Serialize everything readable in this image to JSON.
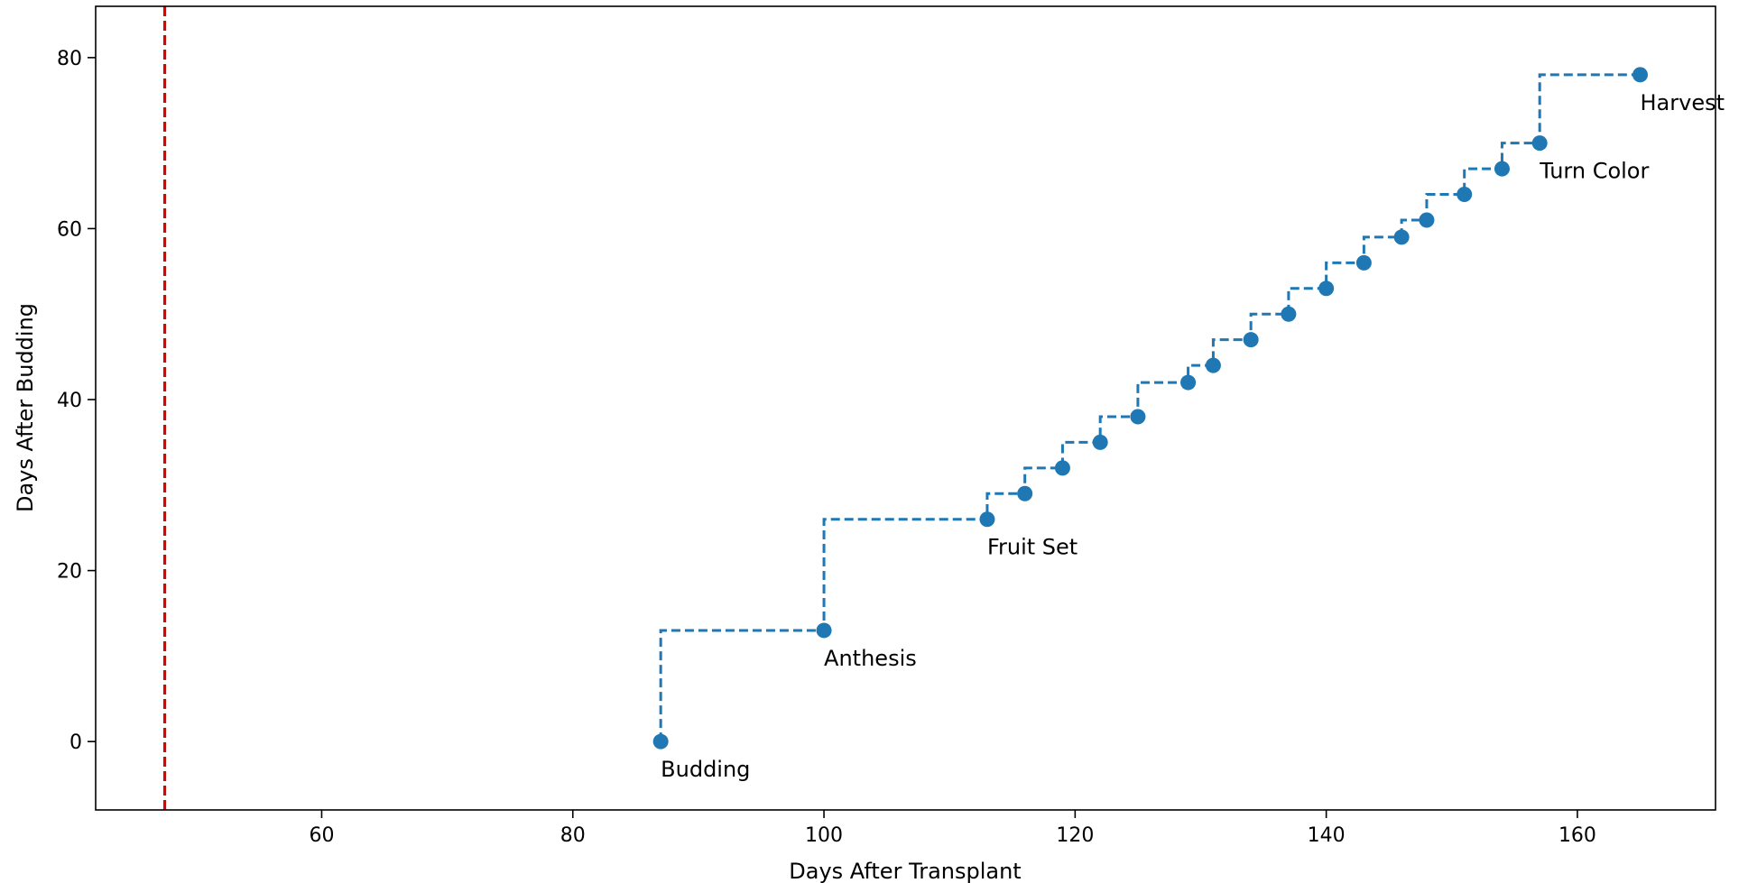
{
  "chart_data": {
    "type": "line",
    "title": "",
    "xlabel": "Days After Transplant",
    "ylabel": "Days After Budding",
    "xlim": [
      42,
      171
    ],
    "ylim": [
      -8,
      86
    ],
    "xticks": [
      60,
      80,
      100,
      120,
      140,
      160
    ],
    "yticks": [
      0,
      20,
      40,
      60,
      80
    ],
    "grid": false,
    "legend": "none",
    "step": "post",
    "line_style": "dashed",
    "series": [
      {
        "x": [
          87,
          100,
          113,
          116,
          119,
          122,
          125,
          129,
          131,
          134,
          137,
          140,
          143,
          146,
          148,
          151,
          154,
          157,
          165
        ],
        "y": [
          0,
          13,
          26,
          29,
          32,
          35,
          38,
          42,
          44,
          47,
          50,
          53,
          56,
          59,
          61,
          64,
          67,
          70,
          78
        ]
      }
    ],
    "annotations": [
      {
        "text": "Budding",
        "x": 87,
        "y": 0
      },
      {
        "text": "Anthesis",
        "x": 100,
        "y": 13
      },
      {
        "text": "Fruit Set",
        "x": 113,
        "y": 26
      },
      {
        "text": "Turn Color",
        "x": 157,
        "y": 70
      },
      {
        "text": "Harvest",
        "x": 165,
        "y": 78
      }
    ],
    "vline": {
      "x": 47.5,
      "color": "#e00000",
      "style": "dashed"
    },
    "colors": {
      "series": "#1f77b4",
      "vline": "#e00000",
      "axes": "#000000"
    }
  }
}
